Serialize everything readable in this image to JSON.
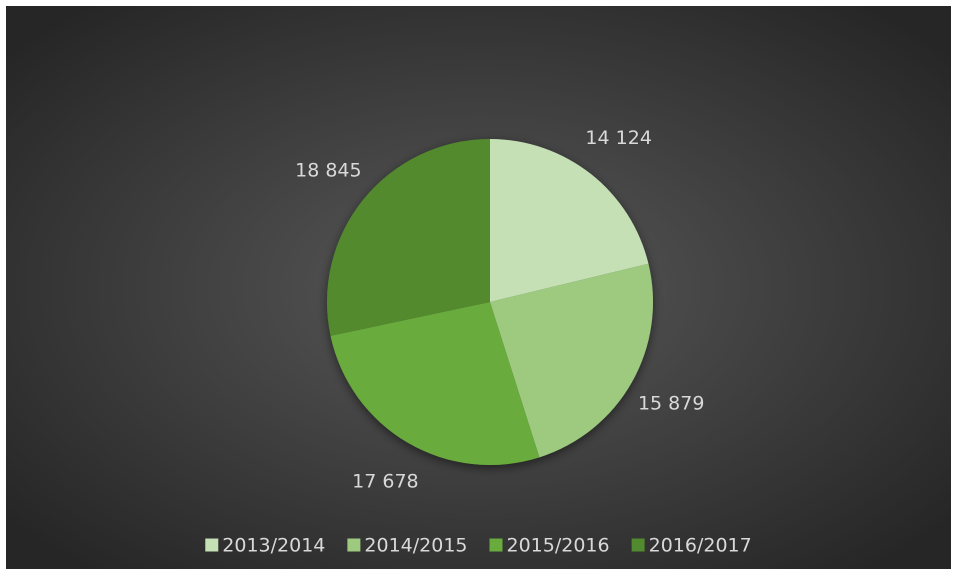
{
  "chart_data": {
    "type": "pie",
    "categories": [
      "2013/2014",
      "2014/2015",
      "2015/2016",
      "2016/2017"
    ],
    "values": [
      14124,
      15879,
      17678,
      18845
    ],
    "value_labels": [
      "14 124",
      "15 879",
      "17 678",
      "18 845"
    ],
    "colors": [
      "#c5e0b4",
      "#9dca7f",
      "#6aab3d",
      "#528a2f"
    ],
    "legend": "bottom"
  }
}
